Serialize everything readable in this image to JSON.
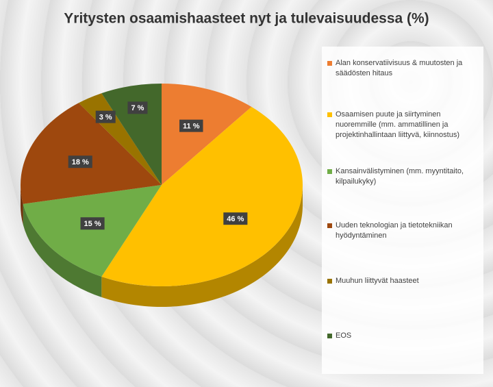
{
  "chart_data": {
    "type": "pie",
    "title": "Yritysten osaamishaasteet nyt ja tulevaisuudessa (%)",
    "categories": [
      "Alan konservatiivisuus & muutosten ja säädösten hitaus",
      "Osaamisen puute ja siirtyminen nuoremmille (mm. ammatillinen ja projektinhallintaan liittyvä, kiinnostus)",
      "Kansainvälistyminen (mm. myyntitaito, kilpailukyky)",
      "Uuden teknologian ja tietotekniikan hyödyntäminen",
      "Muuhun liittyvät haasteet",
      "EOS"
    ],
    "values": [
      11,
      46,
      15,
      18,
      3,
      7
    ],
    "value_labels": [
      "11 %",
      "46 %",
      "15 %",
      "18 %",
      "3 %",
      "7 %"
    ],
    "colors": [
      "#ed7d31",
      "#ffc000",
      "#70ad47",
      "#9e480e",
      "#997300",
      "#43682b"
    ],
    "legend": "right"
  }
}
